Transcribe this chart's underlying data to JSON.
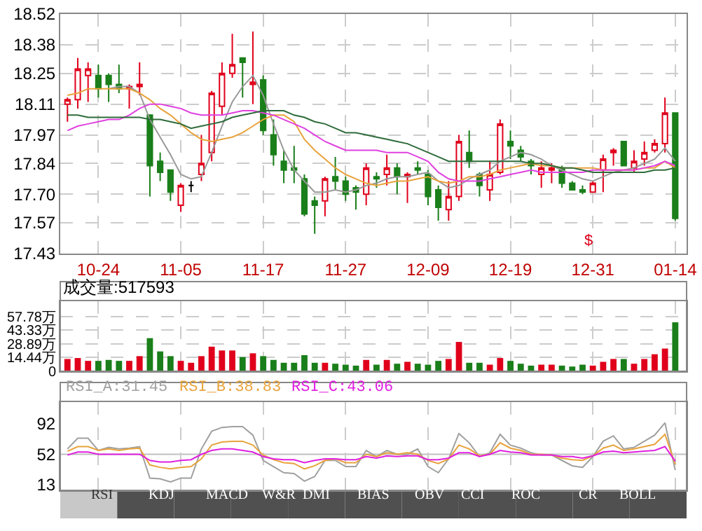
{
  "chart_data": [
    {
      "type": "candlestick",
      "categories": [
        null,
        null,
        null,
        "10-24",
        null,
        null,
        null,
        null,
        null,
        null,
        null,
        "11-05",
        null,
        null,
        null,
        null,
        null,
        null,
        null,
        "11-17",
        null,
        null,
        null,
        null,
        null,
        null,
        null,
        "11-27",
        null,
        null,
        null,
        null,
        null,
        null,
        null,
        "12-09",
        null,
        null,
        null,
        null,
        null,
        null,
        null,
        "12-19",
        null,
        null,
        null,
        null,
        null,
        null,
        null,
        "12-31",
        null,
        null,
        null,
        null,
        null,
        null,
        null,
        "01-14"
      ],
      "ohlc": [
        [
          18.11,
          18.14,
          18.03,
          18.13
        ],
        [
          18.13,
          18.32,
          18.09,
          18.27
        ],
        [
          18.24,
          18.3,
          18.12,
          18.27
        ],
        [
          18.24,
          18.29,
          18.14,
          18.18
        ],
        [
          18.24,
          18.25,
          18.12,
          18.2
        ],
        [
          18.2,
          18.29,
          18.16,
          18.18
        ],
        [
          18.18,
          18.2,
          18.09,
          18.19
        ],
        [
          18.19,
          18.3,
          18.15,
          18.2
        ],
        [
          18.06,
          18.06,
          17.69,
          17.83
        ],
        [
          17.85,
          17.89,
          17.76,
          17.8
        ],
        [
          17.81,
          17.81,
          17.67,
          17.71
        ],
        [
          17.65,
          17.75,
          17.62,
          17.74
        ],
        [
          17.74,
          17.76,
          17.71,
          17.74
        ],
        [
          17.79,
          17.97,
          17.76,
          17.84
        ],
        [
          17.89,
          18.17,
          17.85,
          18.16
        ],
        [
          18.1,
          18.3,
          18.06,
          18.25
        ],
        [
          18.25,
          18.43,
          18.23,
          18.29
        ],
        [
          18.32,
          18.32,
          18.14,
          18.3
        ],
        [
          18.2,
          18.44,
          18.11,
          18.21
        ],
        [
          18.22,
          18.24,
          17.97,
          17.99
        ],
        [
          17.97,
          18.04,
          17.83,
          17.88
        ],
        [
          17.85,
          17.9,
          17.75,
          17.81
        ],
        [
          17.82,
          17.92,
          17.75,
          17.81
        ],
        [
          17.77,
          17.79,
          17.6,
          17.61
        ],
        [
          17.67,
          17.69,
          17.52,
          17.65
        ],
        [
          17.67,
          17.78,
          17.6,
          17.77
        ],
        [
          17.78,
          17.87,
          17.72,
          17.76
        ],
        [
          17.76,
          17.78,
          17.67,
          17.7
        ],
        [
          17.73,
          17.74,
          17.63,
          17.71
        ],
        [
          17.7,
          17.84,
          17.65,
          17.82
        ],
        [
          17.78,
          17.8,
          17.73,
          17.77
        ],
        [
          17.79,
          17.88,
          17.74,
          17.82
        ],
        [
          17.82,
          17.84,
          17.7,
          17.78
        ],
        [
          17.78,
          17.8,
          17.66,
          17.79
        ],
        [
          17.82,
          17.85,
          17.79,
          17.81
        ],
        [
          17.79,
          17.81,
          17.65,
          17.69
        ],
        [
          17.72,
          17.74,
          17.58,
          17.64
        ],
        [
          17.63,
          17.76,
          17.58,
          17.69
        ],
        [
          17.69,
          17.97,
          17.67,
          17.94
        ],
        [
          17.89,
          17.99,
          17.82,
          17.85
        ],
        [
          17.79,
          17.8,
          17.69,
          17.74
        ],
        [
          17.72,
          17.85,
          17.67,
          17.79
        ],
        [
          17.8,
          18.04,
          17.79,
          18.02
        ],
        [
          17.94,
          17.99,
          17.86,
          17.92
        ],
        [
          17.9,
          17.92,
          17.85,
          17.87
        ],
        [
          17.85,
          17.86,
          17.79,
          17.83
        ],
        [
          17.79,
          17.85,
          17.73,
          17.82
        ],
        [
          17.81,
          17.84,
          17.75,
          17.82
        ],
        [
          17.82,
          17.83,
          17.73,
          17.75
        ],
        [
          17.75,
          17.76,
          17.72,
          17.72
        ],
        [
          17.72,
          17.74,
          17.7,
          17.71
        ],
        [
          17.71,
          17.76,
          17.71,
          17.75
        ],
        [
          17.81,
          17.88,
          17.71,
          17.86
        ],
        [
          17.89,
          17.91,
          17.83,
          17.9
        ],
        [
          17.94,
          17.94,
          17.83,
          17.83
        ],
        [
          17.82,
          17.9,
          17.8,
          17.85
        ],
        [
          17.86,
          17.94,
          17.83,
          17.89
        ],
        [
          17.9,
          17.95,
          17.89,
          17.93
        ],
        [
          17.93,
          18.14,
          17.89,
          18.07
        ],
        [
          18.07,
          18.07,
          17.58,
          17.59
        ]
      ],
      "colors": [
        "#e0001b",
        "#e0001b",
        "#e0001b",
        "#1a7f1a",
        "#1a7f1a",
        "#1a7f1a",
        "#e0001b",
        "#e0001b",
        "#1a7f1a",
        "#1a7f1a",
        "#1a7f1a",
        "#e0001b",
        "#000000",
        "#e0001b",
        "#e0001b",
        "#e0001b",
        "#e0001b",
        "#1a7f1a",
        "#e0001b",
        "#1a7f1a",
        "#1a7f1a",
        "#1a7f1a",
        "#1a7f1a",
        "#1a7f1a",
        "#1a7f1a",
        "#e0001b",
        "#1a7f1a",
        "#1a7f1a",
        "#1a7f1a",
        "#e0001b",
        "#1a7f1a",
        "#e0001b",
        "#1a7f1a",
        "#e0001b",
        "#1a7f1a",
        "#1a7f1a",
        "#1a7f1a",
        "#e0001b",
        "#e0001b",
        "#1a7f1a",
        "#1a7f1a",
        "#e0001b",
        "#e0001b",
        "#1a7f1a",
        "#1a7f1a",
        "#1a7f1a",
        "#e0001b",
        "#e0001b",
        "#1a7f1a",
        "#1a7f1a",
        "#1a7f1a",
        "#e0001b",
        "#e0001b",
        "#e0001b",
        "#1a7f1a",
        "#e0001b",
        "#e0001b",
        "#e0001b",
        "#e0001b",
        "#1a7f1a"
      ],
      "series": [
        {
          "type": "line",
          "color": "#999999",
          "values": [
            null,
            null,
            null,
            null,
            18.18,
            18.19,
            18.19,
            18.16,
            18.04,
            17.96,
            17.88,
            17.79,
            17.77,
            17.78,
            17.89,
            18.01,
            18.12,
            18.19,
            18.24,
            18.15,
            18.02,
            17.9,
            17.81,
            17.76,
            17.71,
            17.71,
            17.72,
            17.71,
            17.72,
            17.74,
            17.75,
            17.77,
            17.78,
            17.78,
            17.79,
            17.8,
            17.76,
            17.73,
            17.74,
            17.77,
            17.79,
            17.81,
            17.85,
            17.87,
            17.89,
            17.88,
            17.86,
            17.83,
            17.81,
            17.79,
            17.77,
            17.76,
            17.78,
            17.8,
            17.81,
            17.82,
            17.84,
            17.86,
            17.91,
            17.85
          ]
        },
        {
          "type": "line",
          "color": "#e8a33c",
          "values": [
            18.15,
            18.16,
            18.18,
            18.18,
            18.18,
            18.18,
            18.18,
            18.16,
            18.13,
            18.09,
            18.06,
            18.02,
            17.98,
            17.95,
            17.94,
            17.95,
            17.96,
            17.98,
            18.01,
            18.04,
            18.06,
            18.06,
            18.03,
            17.95,
            17.9,
            17.86,
            17.82,
            17.79,
            17.77,
            17.75,
            17.74,
            17.75,
            17.76,
            17.76,
            17.77,
            17.78,
            17.76,
            17.75,
            17.76,
            17.78,
            17.78,
            17.79,
            17.81,
            17.82,
            17.83,
            17.84,
            17.83,
            17.83,
            17.82,
            17.82,
            17.82,
            17.82,
            17.81,
            17.81,
            17.81,
            17.81,
            17.82,
            17.82,
            17.85,
            17.82
          ]
        },
        {
          "type": "line",
          "color": "#e040e0",
          "values": [
            17.99,
            18.01,
            18.02,
            18.03,
            18.04,
            18.04,
            18.06,
            18.09,
            18.11,
            18.11,
            18.1,
            18.09,
            18.07,
            18.06,
            18.06,
            18.06,
            18.07,
            18.08,
            18.08,
            18.07,
            18.06,
            18.04,
            18.02,
            18.0,
            17.97,
            17.94,
            17.92,
            17.9,
            17.9,
            17.9,
            17.9,
            17.89,
            17.89,
            17.89,
            17.87,
            17.85,
            17.8,
            17.77,
            17.76,
            17.76,
            17.76,
            17.77,
            17.78,
            17.79,
            17.8,
            17.81,
            17.8,
            17.8,
            17.8,
            17.8,
            17.8,
            17.81,
            17.81,
            17.81,
            17.81,
            17.81,
            17.82,
            17.83,
            17.85,
            17.83
          ]
        },
        {
          "type": "line",
          "color": "#2e6b3a",
          "values": [
            18.06,
            18.06,
            18.05,
            18.05,
            18.05,
            18.05,
            18.05,
            18.05,
            18.04,
            18.04,
            18.03,
            18.02,
            18.0,
            18.01,
            18.02,
            18.03,
            18.05,
            18.06,
            18.07,
            18.08,
            18.08,
            18.08,
            18.06,
            18.05,
            18.03,
            18.02,
            18.0,
            17.98,
            17.98,
            17.97,
            17.96,
            17.95,
            17.94,
            17.93,
            17.91,
            17.89,
            17.87,
            17.85,
            17.85,
            17.85,
            17.85,
            17.85,
            17.85,
            17.85,
            17.85,
            17.84,
            17.84,
            17.83,
            17.82,
            17.82,
            17.81,
            17.8,
            17.8,
            17.8,
            17.8,
            17.8,
            17.8,
            17.81,
            17.81,
            17.82
          ]
        }
      ],
      "ylim": [
        17.43,
        18.52
      ],
      "yticks": [
        17.43,
        17.57,
        {
          "value": 17.7,
          "label": "17.70"
        },
        17.84,
        17.97,
        18.11,
        18.25,
        18.38,
        18.52
      ],
      "grid": true,
      "legend": false,
      "marker": "none",
      "annotations": [
        "$"
      ]
    },
    {
      "type": "bar",
      "title": "成交量:517593",
      "categories": [
        null,
        null,
        null,
        null,
        null,
        null,
        null,
        null,
        null,
        null,
        null,
        null,
        null,
        null,
        null,
        null,
        null,
        null,
        null,
        null,
        null,
        null,
        null,
        null,
        null,
        null,
        null,
        null,
        null,
        null,
        null,
        null,
        null,
        null,
        null,
        null,
        null,
        null,
        null,
        null,
        null,
        null,
        null,
        null,
        null,
        null,
        null,
        null,
        null,
        null,
        null,
        null,
        null,
        null,
        null,
        null,
        null,
        null,
        null,
        null
      ],
      "values": [
        13,
        14,
        11,
        11,
        12,
        11,
        11,
        16,
        35,
        21,
        16,
        11,
        9,
        16,
        26,
        22,
        22,
        15,
        19,
        16,
        12,
        9,
        9,
        17,
        9,
        9,
        8,
        7,
        6,
        12,
        7,
        12,
        8,
        10,
        8,
        7,
        11,
        13,
        31,
        9,
        9,
        7,
        14,
        11,
        8,
        6,
        7,
        7,
        6,
        5,
        7,
        6,
        10,
        13,
        13,
        8,
        13,
        18,
        24,
        51.76
      ],
      "colors": [
        "#e0001b",
        "#e0001b",
        "#e0001b",
        "#1a7f1a",
        "#1a7f1a",
        "#1a7f1a",
        "#e0001b",
        "#e0001b",
        "#1a7f1a",
        "#1a7f1a",
        "#1a7f1a",
        "#e0001b",
        "#e0001b",
        "#e0001b",
        "#e0001b",
        "#e0001b",
        "#e0001b",
        "#1a7f1a",
        "#e0001b",
        "#1a7f1a",
        "#1a7f1a",
        "#1a7f1a",
        "#1a7f1a",
        "#1a7f1a",
        "#1a7f1a",
        "#e0001b",
        "#1a7f1a",
        "#1a7f1a",
        "#1a7f1a",
        "#e0001b",
        "#1a7f1a",
        "#e0001b",
        "#1a7f1a",
        "#e0001b",
        "#1a7f1a",
        "#1a7f1a",
        "#1a7f1a",
        "#e0001b",
        "#e0001b",
        "#1a7f1a",
        "#1a7f1a",
        "#e0001b",
        "#e0001b",
        "#1a7f1a",
        "#1a7f1a",
        "#1a7f1a",
        "#e0001b",
        "#e0001b",
        "#1a7f1a",
        "#1a7f1a",
        "#1a7f1a",
        "#e0001b",
        "#e0001b",
        "#e0001b",
        "#1a7f1a",
        "#e0001b",
        "#e0001b",
        "#e0001b",
        "#e0001b",
        "#1a7f1a"
      ],
      "ylim": [
        0,
        74
      ],
      "yticks": [
        0,
        {
          "value": 14.44,
          "label": "14.44万"
        },
        {
          "value": 28.89,
          "label": "28.89万"
        },
        {
          "value": 43.33,
          "label": "43.33万"
        },
        {
          "value": 57.78,
          "label": "57.78万"
        }
      ],
      "grid": true,
      "tick_labels": "y"
    },
    {
      "type": "line",
      "categories": [
        null,
        null,
        null,
        null,
        null,
        null,
        null,
        null,
        null,
        null,
        null,
        null,
        null,
        null,
        null,
        null,
        null,
        null,
        null,
        null,
        null,
        null,
        null,
        null,
        null,
        null,
        null,
        null,
        null,
        null,
        null,
        null,
        null,
        null,
        null,
        null,
        null,
        null,
        null,
        null,
        null,
        null,
        null,
        null,
        null,
        null,
        null,
        null,
        null,
        null,
        null,
        null,
        null,
        null,
        null,
        null,
        null,
        null,
        null,
        null
      ],
      "series": [
        {
          "name": "RSI_A:31.45",
          "color": "#a0a0a0",
          "values": [
            59,
            73,
            73,
            57,
            61,
            59,
            60,
            62,
            21,
            20,
            16,
            21,
            21,
            59,
            82,
            87,
            88,
            88,
            77,
            44,
            36,
            28,
            27,
            17,
            23,
            44,
            44,
            36,
            36,
            57,
            49,
            57,
            52,
            52,
            59,
            36,
            28,
            46,
            79,
            67,
            49,
            54,
            78,
            64,
            60,
            54,
            51,
            51,
            44,
            37,
            35,
            49,
            69,
            76,
            59,
            61,
            69,
            77,
            93,
            31.45
          ]
        },
        {
          "name": "RSI_B:38.83",
          "color": "#e8a33c",
          "values": [
            56,
            62,
            62,
            57,
            59,
            57,
            59,
            60,
            38,
            35,
            33,
            35,
            36,
            46,
            64,
            68,
            69,
            69,
            64,
            51,
            45,
            41,
            40,
            33,
            37,
            44,
            46,
            41,
            41,
            52,
            49,
            54,
            52,
            54,
            52,
            44,
            40,
            46,
            64,
            59,
            50,
            52,
            67,
            60,
            57,
            52,
            52,
            51,
            47,
            45,
            44,
            50,
            60,
            64,
            57,
            59,
            62,
            65,
            78,
            38.83
          ]
        },
        {
          "name": "RSI_C:43.06",
          "color": "#e020e0",
          "values": [
            51,
            55,
            55,
            52,
            52,
            52,
            52,
            52,
            44,
            42,
            42,
            44,
            45,
            52,
            57,
            59,
            59,
            57,
            55,
            49,
            46,
            45,
            45,
            41,
            44,
            46,
            46,
            45,
            45,
            49,
            47,
            50,
            49,
            50,
            50,
            45,
            45,
            47,
            54,
            54,
            49,
            52,
            57,
            55,
            54,
            51,
            51,
            51,
            49,
            49,
            47,
            50,
            55,
            56,
            54,
            55,
            56,
            57,
            62,
            43.06
          ]
        }
      ],
      "ylim": [
        5,
        120
      ],
      "yticks": [
        13,
        52,
        92
      ],
      "grid": "x",
      "legend": "top left",
      "marker": "none",
      "tick_labels": "y",
      "ref_lines": [
        {
          "axis": "y",
          "value": 52,
          "color": "#c0c0c0"
        }
      ]
    },
    {
      "type": "other",
      "annotations": [
        "RSI",
        "KDJ",
        "MACD",
        "W&R",
        "DMI",
        "BIAS",
        "OBV",
        "CCI",
        "ROC",
        "CR",
        "BOLL"
      ]
    }
  ]
}
